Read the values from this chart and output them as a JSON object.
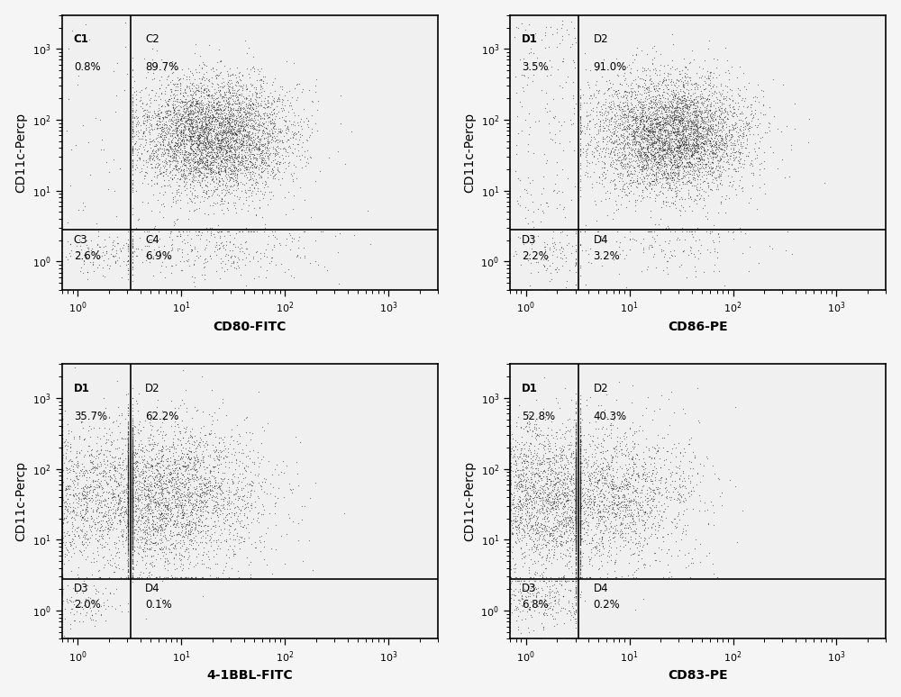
{
  "panels": [
    {
      "row": 0,
      "col": 0,
      "xlabel": "CD80-FITC",
      "ylabel": "CD11c-Percp",
      "quadrant_labels": [
        "C1",
        "C2",
        "C3",
        "C4"
      ],
      "quadrant_pcts": [
        "0.8%",
        "89.7%",
        "2.6%",
        "6.9%"
      ],
      "gate_x": 3.2,
      "gate_y": 2.8,
      "xlim": [
        0.7,
        3000
      ],
      "ylim": [
        0.4,
        3000
      ],
      "n_total": 5000,
      "cluster_type": "CD80"
    },
    {
      "row": 0,
      "col": 1,
      "xlabel": "CD86-PE",
      "ylabel": "CD11c-Percp",
      "quadrant_labels": [
        "D1",
        "D2",
        "D3",
        "D4"
      ],
      "quadrant_pcts": [
        "3.5%",
        "91.0%",
        "2.2%",
        "3.2%"
      ],
      "gate_x": 3.2,
      "gate_y": 2.8,
      "xlim": [
        0.7,
        3000
      ],
      "ylim": [
        0.4,
        3000
      ],
      "n_total": 5000,
      "cluster_type": "CD86"
    },
    {
      "row": 1,
      "col": 0,
      "xlabel": "4-1BBL-FITC",
      "ylabel": "CD11c-Percp",
      "quadrant_labels": [
        "D1",
        "D2",
        "D3",
        "D4"
      ],
      "quadrant_pcts": [
        "35.7%",
        "62.2%",
        "2.0%",
        "0.1%"
      ],
      "gate_x": 3.2,
      "gate_y": 2.8,
      "xlim": [
        0.7,
        3000
      ],
      "ylim": [
        0.4,
        3000
      ],
      "n_total": 5000,
      "cluster_type": "4-1BBL"
    },
    {
      "row": 1,
      "col": 1,
      "xlabel": "CD83-PE",
      "ylabel": "CD11c-Percp",
      "quadrant_labels": [
        "D1",
        "D2",
        "D3",
        "D4"
      ],
      "quadrant_pcts": [
        "52.8%",
        "40.3%",
        "6.8%",
        "0.2%"
      ],
      "gate_x": 3.2,
      "gate_y": 2.8,
      "xlim": [
        0.7,
        3000
      ],
      "ylim": [
        0.4,
        3000
      ],
      "n_total": 5000,
      "cluster_type": "CD83"
    }
  ],
  "bg_color": "#f5f5f5",
  "plot_bg": "#f0f0f0",
  "dot_color": "#1a1a1a",
  "dot_alpha": 0.55,
  "dot_size": 0.8,
  "line_color": "#000000",
  "text_color": "#000000",
  "label_fontsize": 8.5,
  "pct_fontsize": 8.5,
  "axis_label_fontsize": 10,
  "tick_fontsize": 8,
  "figure_width": 10.0,
  "figure_height": 7.74
}
